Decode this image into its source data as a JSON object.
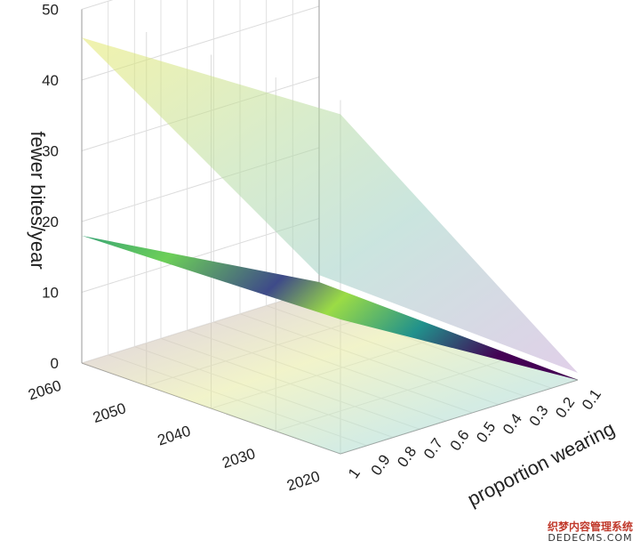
{
  "chart_data": {
    "type": "surface3d",
    "zlabel": "fewer bites/year",
    "ylabel": "proportion wearing",
    "xlabel": "",
    "z_ticks": [
      "0",
      "10",
      "20",
      "30",
      "40",
      "50"
    ],
    "x_ticks": [
      "2020",
      "2030",
      "2040",
      "2050",
      "2060"
    ],
    "y_ticks": [
      "1",
      "0.9",
      "0.8",
      "0.7",
      "0.6",
      "0.5",
      "0.4",
      "0.3",
      "0.2",
      "0.1"
    ],
    "zlim": [
      0,
      50
    ],
    "xlim": [
      2020,
      2060
    ],
    "ylim": [
      0.1,
      1
    ],
    "grid": true,
    "colorscale": "viridis",
    "surfaces": [
      {
        "id": "upper",
        "opacity": 0.55,
        "corners": {
          "2060@1": 46,
          "2020@1": 48,
          "2060@0.1": 2,
          "2020@0.1": 1
        }
      },
      {
        "id": "middle",
        "opacity": 1.0,
        "corners": {
          "2060@1": 18,
          "2020@1": 19,
          "2060@0.1": 1,
          "2020@0.1": 0
        }
      },
      {
        "id": "base",
        "opacity": 0.5,
        "corners": {
          "2060@1": 0,
          "2020@1": 0,
          "2060@0.1": 0,
          "2020@0.1": 0
        }
      }
    ]
  },
  "watermark": {
    "line1": "织梦内容管理系统",
    "line2": "DEDECMS.COM"
  }
}
